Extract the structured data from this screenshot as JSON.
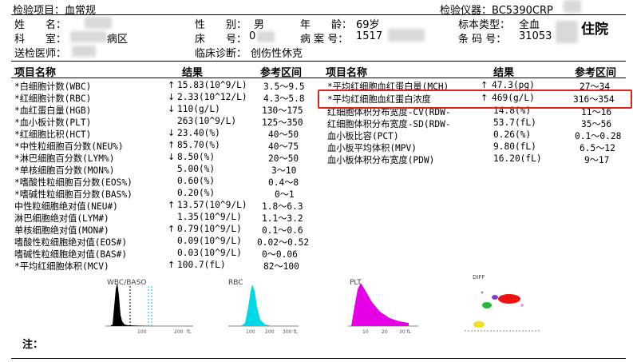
{
  "header": {
    "exam_label": "检验项目：",
    "exam_value": "血常规",
    "instrument_label": "检验仪器：",
    "instrument_value": "BC5390CRP",
    "inpatient": "住院"
  },
  "patient": {
    "name_label": "姓　　名：",
    "dept_label": "科　　室：",
    "dept_value_fragment": "病区",
    "sender_label": "送检医师：",
    "gender_label": "性　　别：",
    "gender_value": "男",
    "bed_label": "床　　号：",
    "bed_value": "0",
    "diag_label": "临床诊断：",
    "diag_value": "创伤性休克",
    "age_label": "年　　龄：",
    "age_value": "69岁",
    "case_label": "病 案 号：",
    "case_value": "1517",
    "sample_label": "标本类型：",
    "sample_value": "全血",
    "barcode_label": "条 码 号：",
    "barcode_value": "31053"
  },
  "table_headers": {
    "item": "项目名称",
    "result": "结果",
    "range": "参考区间"
  },
  "left_rows": [
    {
      "name": "*白细胞计数(WBC)",
      "flag": "↑",
      "result": "15.83(10^9/L)",
      "range": "3.5～9.5"
    },
    {
      "name": "*红细胞计数(RBC)",
      "flag": "↓",
      "result": "2.33(10^12/L)",
      "range": "4.3～5.8"
    },
    {
      "name": "*血红蛋白量(HGB)",
      "flag": "↓",
      "result": "110(g/L)",
      "range": "130～175"
    },
    {
      "name": "*血小板计数(PLT)",
      "flag": "",
      "result": "263(10^9/L)",
      "range": "125～350"
    },
    {
      "name": "*红细胞比积(HCT)",
      "flag": "↓",
      "result": "23.40(%)",
      "range": "40～50"
    },
    {
      "name": "*中性粒细胞百分数(NEU%)",
      "flag": "↑",
      "result": "85.70(%)",
      "range": "40～75"
    },
    {
      "name": "*淋巴细胞百分数(LYM%)",
      "flag": "↓",
      "result": "8.50(%)",
      "range": "20～50"
    },
    {
      "name": "*单核细胞百分数(MON%)",
      "flag": "",
      "result": "5.00(%)",
      "range": "3～10"
    },
    {
      "name": "*嗜酸性粒细胞百分数(EOS%)",
      "flag": "",
      "result": "0.60(%)",
      "range": "0.4～8"
    },
    {
      "name": "*嗜碱性粒细胞百分数(BAS%)",
      "flag": "",
      "result": "0.20(%)",
      "range": "0～1"
    },
    {
      "name": "中性粒细胞绝对值(NEU#)",
      "flag": "↑",
      "result": "13.57(10^9/L)",
      "range": "1.8～6.3"
    },
    {
      "name": "淋巴细胞绝对值(LYM#)",
      "flag": "",
      "result": "1.35(10^9/L)",
      "range": "1.1～3.2"
    },
    {
      "name": "单核细胞绝对值(MON#)",
      "flag": "↑",
      "result": "0.79(10^9/L)",
      "range": "0.1～0.6"
    },
    {
      "name": "嗜酸性粒细胞绝对值(EOS#)",
      "flag": "",
      "result": "0.09(10^9/L)",
      "range": "0.02～0.52"
    },
    {
      "name": "嗜碱性粒细胞绝对值(BAS#)",
      "flag": "",
      "result": "0.03(10^9/L)",
      "range": "0～0.06"
    },
    {
      "name": "*平均红细胞体积(MCV)",
      "flag": "↑",
      "result": "100.7(fL)",
      "range": "82～100"
    }
  ],
  "right_rows": [
    {
      "name": "*平均红细胞血红蛋白量(MCH)",
      "flag": "↑",
      "result": "47.3(pg)",
      "range": "27～34"
    },
    {
      "name": "*平均红细胞血红蛋白浓度",
      "flag": "↑",
      "result": "469(g/L)",
      "range": "316～354"
    },
    {
      "name": "红细胞体积分布宽度-CV(RDW-",
      "flag": "",
      "result": "14.8(%)",
      "range": "11～16"
    },
    {
      "name": "红细胞体积分布宽度-SD(RDW-",
      "flag": "",
      "result": "53.7(fL)",
      "range": "35～56"
    },
    {
      "name": "血小板比容(PCT)",
      "flag": "",
      "result": "0.26(%)",
      "range": "0.1～0.28"
    },
    {
      "name": "血小板平均体积(MPV)",
      "flag": "",
      "result": "9.80(fL)",
      "range": "6.5～12"
    },
    {
      "name": "血小板体积分布宽度(PDW)",
      "flag": "",
      "result": "16.20(fL)",
      "range": "9～17"
    }
  ],
  "histograms": {
    "wbc": {
      "label": "WBC/BASO",
      "ticks": [
        "100",
        "200",
        "fL"
      ]
    },
    "rbc": {
      "label": "RBC",
      "ticks": [
        "100",
        "200",
        "300 fL"
      ]
    },
    "plt": {
      "label": "PLT",
      "ticks": [
        "10",
        "20",
        "30 fL"
      ]
    },
    "diff": {
      "label": "DIFF"
    }
  },
  "colors": {
    "wbc": "#000000",
    "rbc": "#00d8e8",
    "plt": "#e600e6",
    "highlight": "#e2231a"
  },
  "footer": {
    "note_label": "注："
  }
}
